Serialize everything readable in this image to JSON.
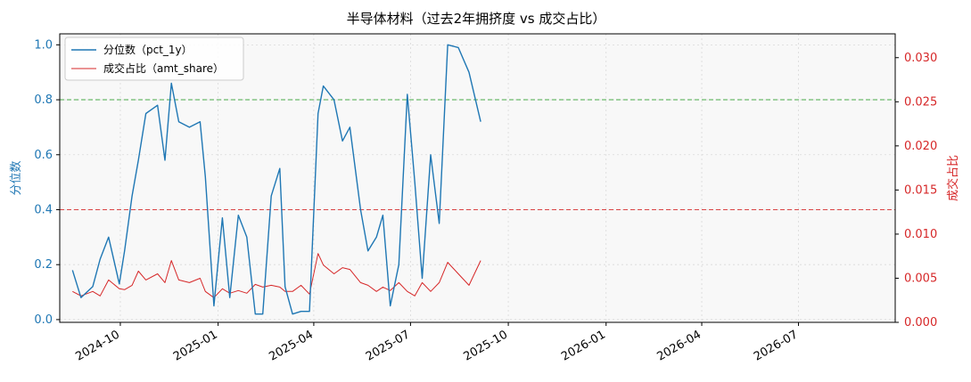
{
  "chart_data": {
    "type": "line",
    "title": "半导体材料（过去2年拥挤度 vs 成交占比）",
    "xlabel": "",
    "x_ticks": [
      "2024-10",
      "2025-01",
      "2025-04",
      "2025-07",
      "2025-10",
      "2026-01",
      "2026-04",
      "2026-07"
    ],
    "x_range": [
      "2024-08-05",
      "2026-09-30"
    ],
    "left_axis": {
      "label": "分位数",
      "ylim": [
        -0.01,
        1.04
      ],
      "ticks": [
        "0.0",
        "0.2",
        "0.4",
        "0.6",
        "0.8",
        "1.0"
      ],
      "color": "#1f77b4"
    },
    "right_axis": {
      "label": "成交占比",
      "ylim": [
        0.0,
        0.0327
      ],
      "ticks": [
        "0.000",
        "0.005",
        "0.010",
        "0.015",
        "0.020",
        "0.025",
        "0.030"
      ],
      "color": "#d62728"
    },
    "reference_lines": [
      {
        "axis": "left",
        "y": 0.8,
        "color": "#2ca02c",
        "style": "dashed"
      },
      {
        "axis": "left",
        "y": 0.4,
        "color": "#d62728",
        "style": "dashed"
      }
    ],
    "legend": {
      "placement": "top-left"
    },
    "grid": true,
    "series": [
      {
        "name": "分位数（pct_1y）",
        "axis": "left",
        "color": "#1f77b4",
        "x": [
          "2024-08-17",
          "2024-08-25",
          "2024-09-05",
          "2024-09-12",
          "2024-09-20",
          "2024-09-30",
          "2024-10-05",
          "2024-10-12",
          "2024-10-18",
          "2024-10-25",
          "2024-11-05",
          "2024-11-12",
          "2024-11-18",
          "2024-11-25",
          "2024-12-05",
          "2024-12-15",
          "2024-12-20",
          "2024-12-28",
          "2025-01-05",
          "2025-01-12",
          "2025-01-20",
          "2025-01-28",
          "2025-02-05",
          "2025-02-12",
          "2025-02-20",
          "2025-02-28",
          "2025-03-05",
          "2025-03-12",
          "2025-03-20",
          "2025-03-28",
          "2025-04-05",
          "2025-04-10",
          "2025-04-20",
          "2025-04-28",
          "2025-05-05",
          "2025-05-15",
          "2025-05-22",
          "2025-05-30",
          "2025-06-05",
          "2025-06-12",
          "2025-06-20",
          "2025-06-28",
          "2025-07-05",
          "2025-07-12",
          "2025-07-20",
          "2025-07-28",
          "2025-08-05",
          "2025-08-15",
          "2025-08-25",
          "2025-09-05"
        ],
        "values": [
          0.18,
          0.08,
          0.12,
          0.22,
          0.3,
          0.13,
          0.25,
          0.45,
          0.58,
          0.75,
          0.78,
          0.58,
          0.86,
          0.72,
          0.7,
          0.72,
          0.52,
          0.05,
          0.37,
          0.08,
          0.38,
          0.3,
          0.02,
          0.02,
          0.45,
          0.55,
          0.12,
          0.02,
          0.03,
          0.03,
          0.75,
          0.85,
          0.8,
          0.65,
          0.7,
          0.4,
          0.25,
          0.3,
          0.38,
          0.05,
          0.2,
          0.82,
          0.5,
          0.15,
          0.6,
          0.35,
          1.0,
          0.99,
          0.9,
          0.72
        ]
      },
      {
        "name": "成交占比（amt_share）",
        "axis": "right",
        "color": "#d62728",
        "x": [
          "2024-08-17",
          "2024-08-25",
          "2024-09-05",
          "2024-09-12",
          "2024-09-20",
          "2024-09-30",
          "2024-10-05",
          "2024-10-12",
          "2024-10-18",
          "2024-10-25",
          "2024-11-05",
          "2024-11-12",
          "2024-11-18",
          "2024-11-25",
          "2024-12-05",
          "2024-12-15",
          "2024-12-20",
          "2024-12-28",
          "2025-01-05",
          "2025-01-12",
          "2025-01-20",
          "2025-01-28",
          "2025-02-05",
          "2025-02-12",
          "2025-02-20",
          "2025-02-28",
          "2025-03-05",
          "2025-03-12",
          "2025-03-20",
          "2025-03-28",
          "2025-04-05",
          "2025-04-10",
          "2025-04-20",
          "2025-04-28",
          "2025-05-05",
          "2025-05-15",
          "2025-05-22",
          "2025-05-30",
          "2025-06-05",
          "2025-06-12",
          "2025-06-20",
          "2025-06-28",
          "2025-07-05",
          "2025-07-12",
          "2025-07-20",
          "2025-07-28",
          "2025-08-05",
          "2025-08-15",
          "2025-08-25",
          "2025-09-05"
        ],
        "values": [
          0.0035,
          0.003,
          0.0035,
          0.003,
          0.0048,
          0.0038,
          0.0037,
          0.0042,
          0.0058,
          0.0048,
          0.0055,
          0.0045,
          0.007,
          0.0048,
          0.0045,
          0.005,
          0.0035,
          0.0028,
          0.0038,
          0.0033,
          0.0036,
          0.0033,
          0.0043,
          0.004,
          0.0042,
          0.004,
          0.0035,
          0.0035,
          0.0042,
          0.0032,
          0.0078,
          0.0065,
          0.0055,
          0.0062,
          0.006,
          0.0045,
          0.0042,
          0.0035,
          0.004,
          0.0036,
          0.0045,
          0.0035,
          0.003,
          0.0045,
          0.0035,
          0.0045,
          0.0068,
          0.0055,
          0.0042,
          0.007
        ]
      }
    ]
  }
}
